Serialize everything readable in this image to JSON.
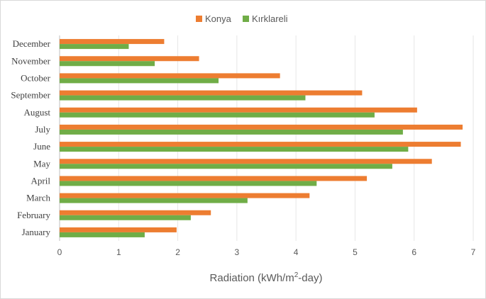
{
  "chart_data": {
    "type": "bar",
    "orientation": "horizontal",
    "categories": [
      "January",
      "February",
      "March",
      "April",
      "May",
      "June",
      "July",
      "August",
      "September",
      "October",
      "November",
      "December"
    ],
    "series": [
      {
        "name": "Konya",
        "color": "#ed7d31",
        "values": [
          1.98,
          2.56,
          4.23,
          5.2,
          6.3,
          6.79,
          6.82,
          6.05,
          5.12,
          3.73,
          2.36,
          1.77
        ]
      },
      {
        "name": "Kırklareli",
        "color": "#70ad47",
        "values": [
          1.44,
          2.22,
          3.18,
          4.35,
          5.63,
          5.9,
          5.81,
          5.33,
          4.16,
          2.69,
          1.61,
          1.17
        ]
      }
    ],
    "xlabel": "Radiation (kWh/m²-day)",
    "xlabel_parts": {
      "main": "Radiation (kWh/m",
      "sup": "2",
      "tail": "-day)"
    },
    "ylabel": "",
    "xlim": [
      0,
      7
    ],
    "xticks": [
      "0",
      "1",
      "2",
      "3",
      "4",
      "5",
      "6",
      "7"
    ],
    "grid": "vertical",
    "legend_position": "top"
  }
}
